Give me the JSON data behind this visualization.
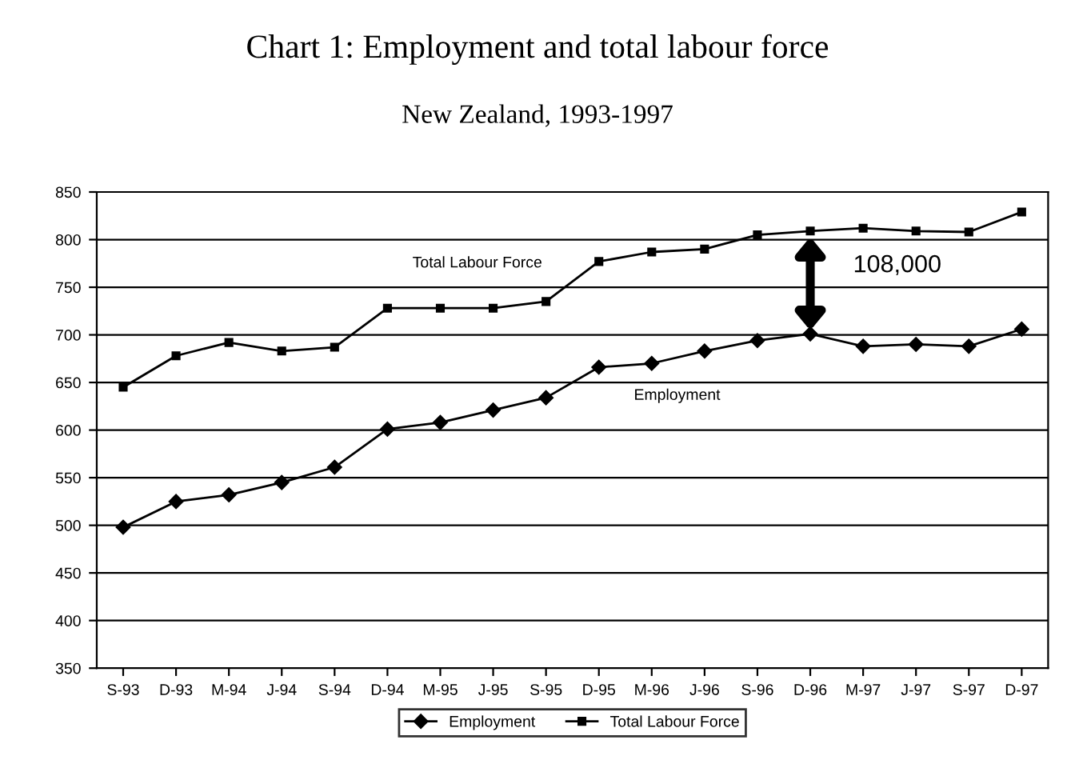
{
  "chart_data": {
    "type": "line",
    "title": "Chart 1: Employment and total labour force",
    "subtitle": "New Zealand, 1993-1997",
    "categories": [
      "S-93",
      "D-93",
      "M-94",
      "J-94",
      "S-94",
      "D-94",
      "M-95",
      "J-95",
      "S-95",
      "D-95",
      "M-96",
      "J-96",
      "S-96",
      "D-96",
      "M-97",
      "J-97",
      "S-97",
      "D-97"
    ],
    "series": [
      {
        "name": "Employment",
        "color": "#000000",
        "marker": "diamond",
        "values": [
          498,
          525,
          532,
          545,
          561,
          601,
          608,
          621,
          634,
          666,
          670,
          683,
          694,
          701,
          688,
          690,
          688,
          706
        ]
      },
      {
        "name": "Total Labour Force",
        "color": "#000000",
        "marker": "square",
        "values": [
          645,
          678,
          692,
          683,
          687,
          728,
          728,
          728,
          735,
          777,
          787,
          790,
          805,
          809,
          812,
          809,
          808,
          829
        ]
      }
    ],
    "ylim": [
      350,
      850
    ],
    "yticks": [
      350,
      400,
      450,
      500,
      550,
      600,
      650,
      700,
      750,
      800,
      850
    ],
    "grid": "y",
    "legend": "bottom",
    "annotations": [
      "Total Labour Force",
      "Employment",
      "108,000"
    ]
  }
}
